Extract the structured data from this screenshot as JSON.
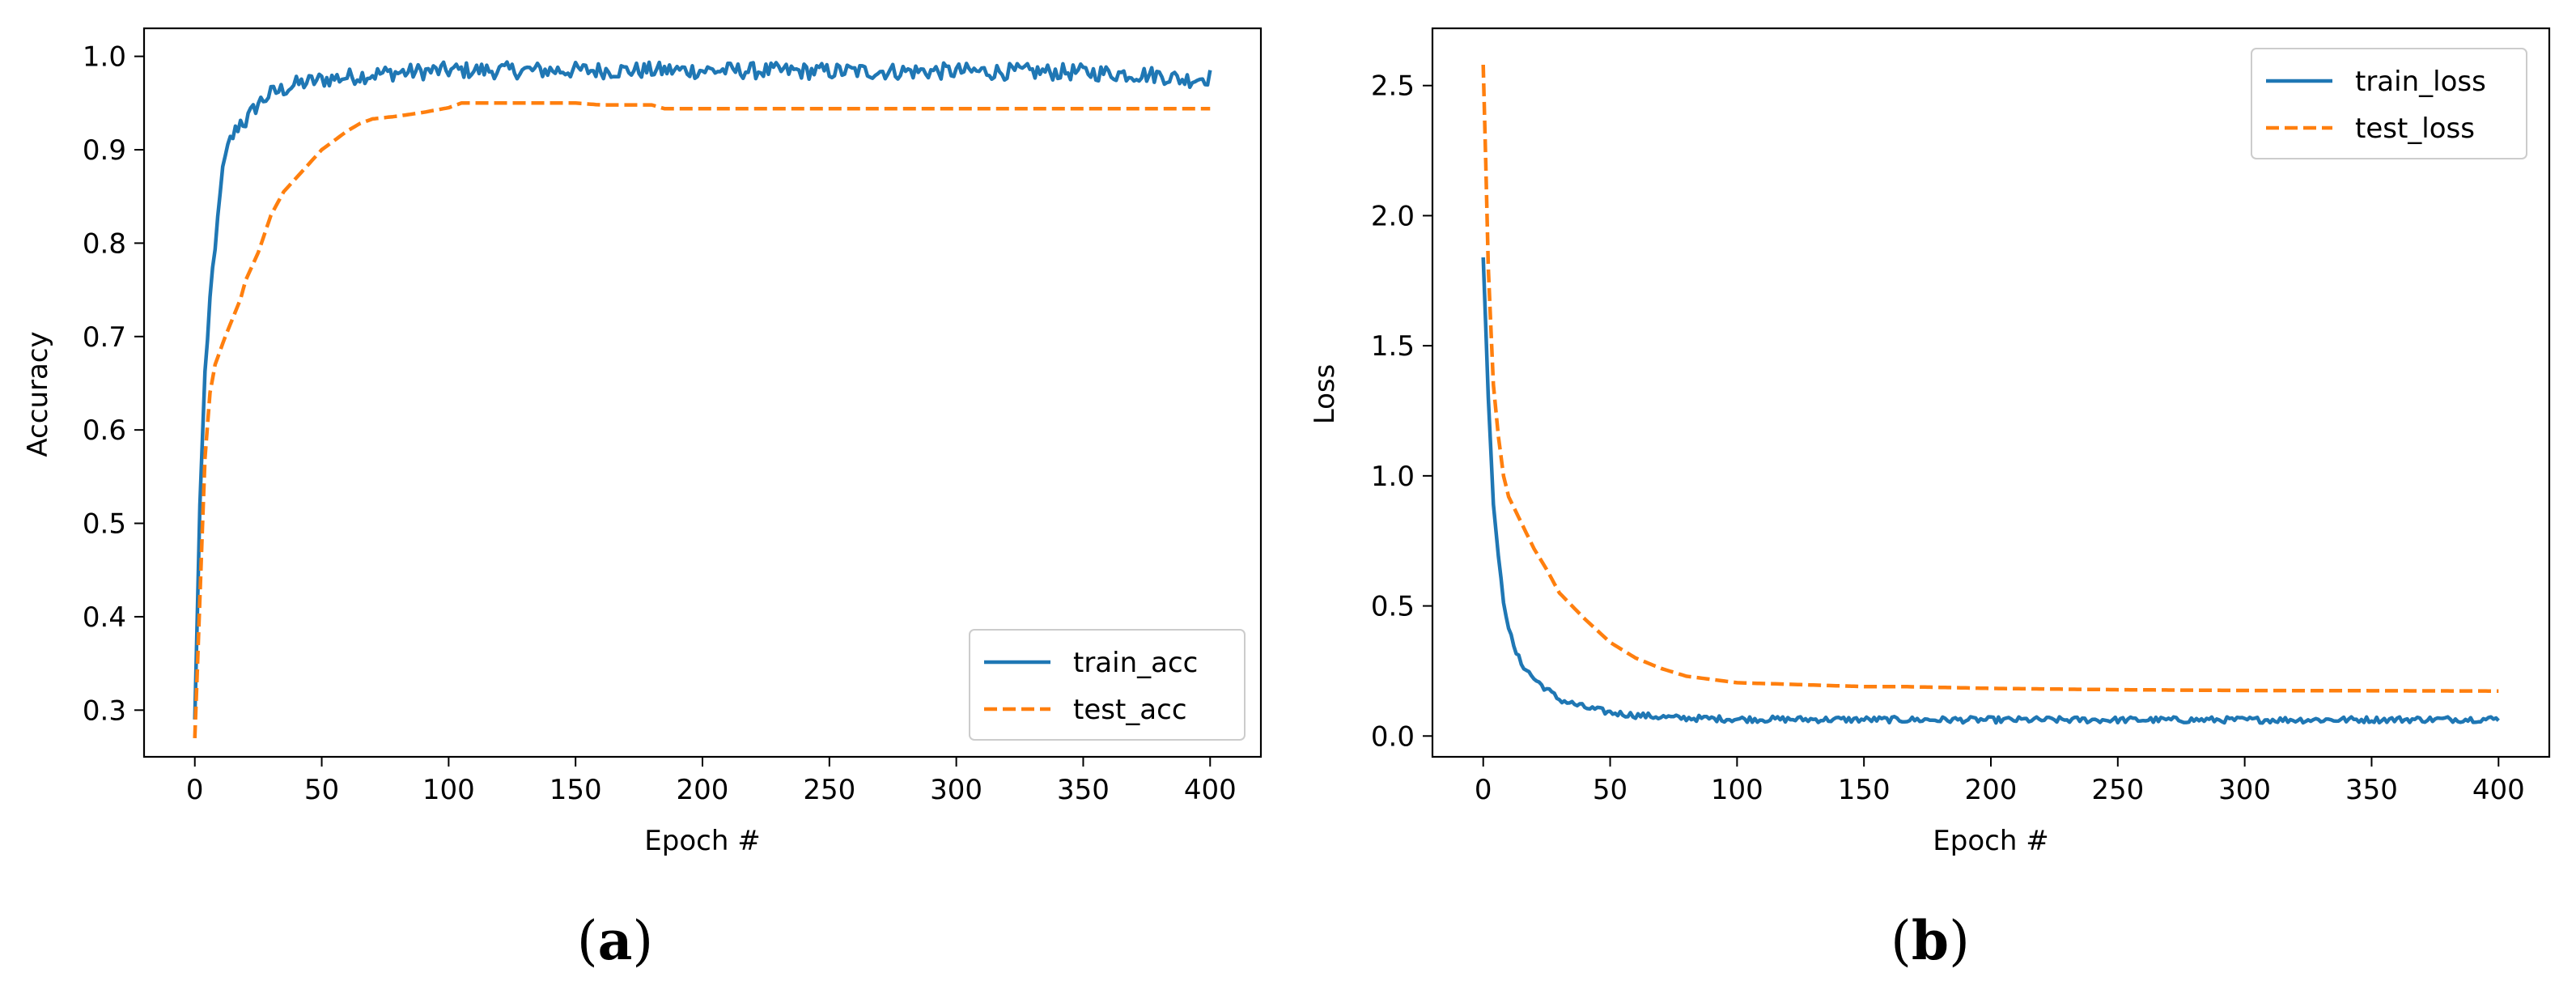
{
  "colors": {
    "train": "#1f77b4",
    "test": "#ff7f0e"
  },
  "chart_data": [
    {
      "panel_label": "(a)",
      "panel_letter": "a",
      "type": "line",
      "title": "",
      "xlabel": "Epoch #",
      "ylabel": "Accuracy",
      "xlim": [
        -20,
        420
      ],
      "ylim": [
        0.25,
        1.03
      ],
      "xticks": [
        0,
        50,
        100,
        150,
        200,
        250,
        300,
        350,
        400
      ],
      "xtick_labels": [
        "0",
        "50",
        "100",
        "150",
        "200",
        "250",
        "300",
        "350",
        "400"
      ],
      "yticks": [
        0.3,
        0.4,
        0.5,
        0.6,
        0.7,
        0.8,
        0.9,
        1.0
      ],
      "ytick_labels": [
        "0.3",
        "0.4",
        "0.5",
        "0.6",
        "0.7",
        "0.8",
        "0.9",
        "1.0"
      ],
      "legend_position": "lower-right",
      "series": [
        {
          "name": "train_acc",
          "style": "solid",
          "x": [
            0,
            2,
            4,
            6,
            8,
            10,
            12,
            14,
            16,
            18,
            20,
            25,
            30,
            35,
            40,
            50,
            60,
            75,
            100,
            150,
            200,
            250,
            300,
            350,
            380,
            390,
            400
          ],
          "y": [
            0.29,
            0.52,
            0.66,
            0.74,
            0.79,
            0.86,
            0.89,
            0.91,
            0.92,
            0.93,
            0.93,
            0.95,
            0.96,
            0.965,
            0.97,
            0.975,
            0.978,
            0.982,
            0.985,
            0.985,
            0.985,
            0.984,
            0.984,
            0.983,
            0.98,
            0.975,
            0.978
          ],
          "noise": 0.009
        },
        {
          "name": "test_acc",
          "style": "dashed",
          "x": [
            0,
            2,
            4,
            6,
            8,
            10,
            12,
            15,
            18,
            20,
            25,
            30,
            35,
            40,
            45,
            50,
            55,
            60,
            65,
            70,
            80,
            90,
            100,
            105,
            110,
            150,
            160,
            180,
            185,
            200,
            400
          ],
          "y": [
            0.27,
            0.42,
            0.57,
            0.64,
            0.67,
            0.685,
            0.7,
            0.72,
            0.74,
            0.76,
            0.79,
            0.83,
            0.855,
            0.87,
            0.885,
            0.9,
            0.91,
            0.92,
            0.928,
            0.933,
            0.936,
            0.94,
            0.945,
            0.95,
            0.95,
            0.95,
            0.948,
            0.948,
            0.944,
            0.944,
            0.944
          ],
          "noise": 0.0
        }
      ]
    },
    {
      "panel_label": "(b)",
      "panel_letter": "b",
      "type": "line",
      "title": "",
      "xlabel": "Epoch #",
      "ylabel": "Loss",
      "xlim": [
        -20,
        420
      ],
      "ylim": [
        -0.08,
        2.72
      ],
      "xticks": [
        0,
        50,
        100,
        150,
        200,
        250,
        300,
        350,
        400
      ],
      "xtick_labels": [
        "0",
        "50",
        "100",
        "150",
        "200",
        "250",
        "300",
        "350",
        "400"
      ],
      "yticks": [
        0.0,
        0.5,
        1.0,
        1.5,
        2.0,
        2.5
      ],
      "ytick_labels": [
        "0.0",
        "0.5",
        "1.0",
        "1.5",
        "2.0",
        "2.5"
      ],
      "legend_position": "top-right",
      "series": [
        {
          "name": "train_loss",
          "style": "solid",
          "x": [
            0,
            2,
            4,
            6,
            8,
            10,
            12,
            15,
            20,
            25,
            30,
            40,
            50,
            60,
            75,
            100,
            150,
            200,
            250,
            300,
            350,
            400
          ],
          "y": [
            1.84,
            1.3,
            0.9,
            0.68,
            0.52,
            0.42,
            0.34,
            0.28,
            0.22,
            0.18,
            0.14,
            0.11,
            0.09,
            0.08,
            0.07,
            0.065,
            0.063,
            0.062,
            0.062,
            0.062,
            0.063,
            0.065
          ],
          "noise": 0.012
        },
        {
          "name": "test_loss",
          "style": "dashed",
          "x": [
            0,
            1,
            2,
            4,
            6,
            8,
            10,
            15,
            20,
            25,
            30,
            40,
            50,
            60,
            70,
            80,
            100,
            150,
            165,
            200,
            250,
            300,
            350,
            400
          ],
          "y": [
            2.58,
            2.2,
            1.8,
            1.35,
            1.15,
            1.0,
            0.92,
            0.82,
            0.72,
            0.64,
            0.55,
            0.45,
            0.36,
            0.3,
            0.26,
            0.23,
            0.205,
            0.19,
            0.19,
            0.183,
            0.178,
            0.175,
            0.174,
            0.173
          ],
          "noise": 0.0
        }
      ]
    }
  ]
}
